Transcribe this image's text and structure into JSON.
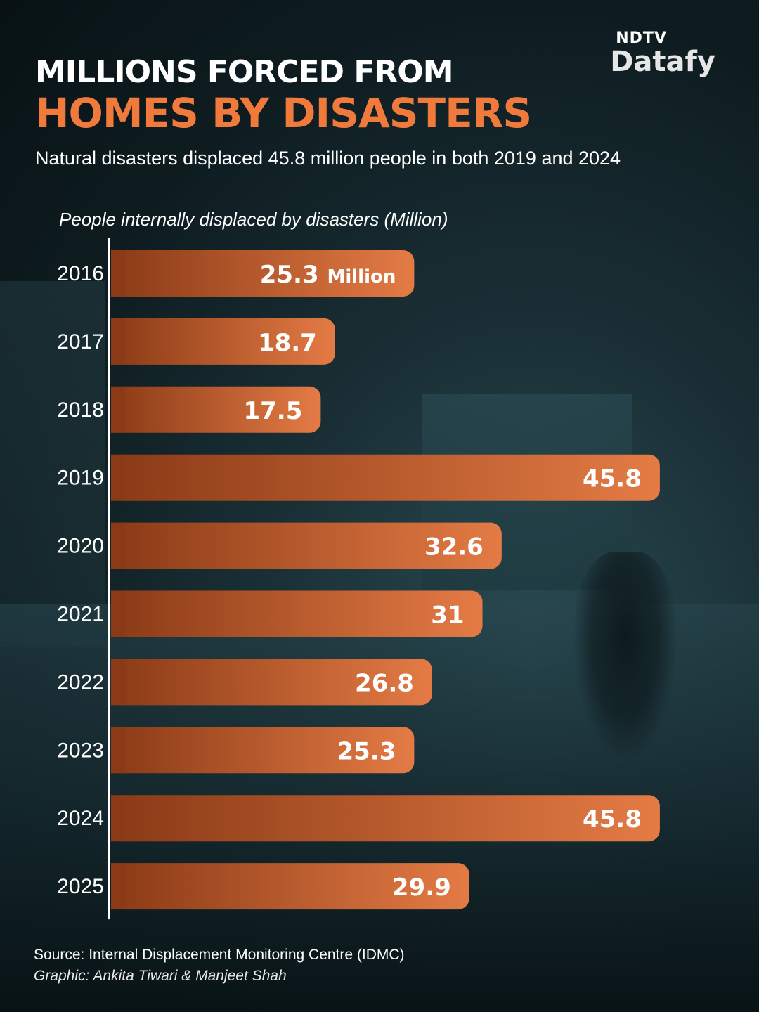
{
  "logo": {
    "top": "NDTV",
    "main": "Datafy"
  },
  "header": {
    "title_line1": "MILLIONS FORCED FROM",
    "title_line2": "HOMES BY DISASTERS",
    "subtitle": "Natural disasters displaced 45.8 million people in both 2019 and 2024"
  },
  "colors": {
    "accent": "#f07a3c",
    "bar_dark": "#8a3a16",
    "bar_light": "#e47b45",
    "background": "#102025"
  },
  "chart_data": {
    "type": "bar",
    "orientation": "horizontal",
    "title": "People internally displaced by disasters (Million)",
    "categories": [
      "2016",
      "2017",
      "2018",
      "2019",
      "2020",
      "2021",
      "2022",
      "2023",
      "2024",
      "2025"
    ],
    "values": [
      25.3,
      18.7,
      17.5,
      45.8,
      32.6,
      31,
      26.8,
      25.3,
      45.8,
      29.9
    ],
    "data_labels": [
      "25.3",
      "18.7",
      "17.5",
      "45.8",
      "32.6",
      "31",
      "26.8",
      "25.3",
      "45.8",
      "29.9"
    ],
    "first_label_unit": "Million",
    "grid": false,
    "legend": "none"
  },
  "footer": {
    "source": "Source: Internal Displacement Monitoring Centre (IDMC)",
    "graphic": "Graphic: Ankita Tiwari & Manjeet Shah"
  }
}
